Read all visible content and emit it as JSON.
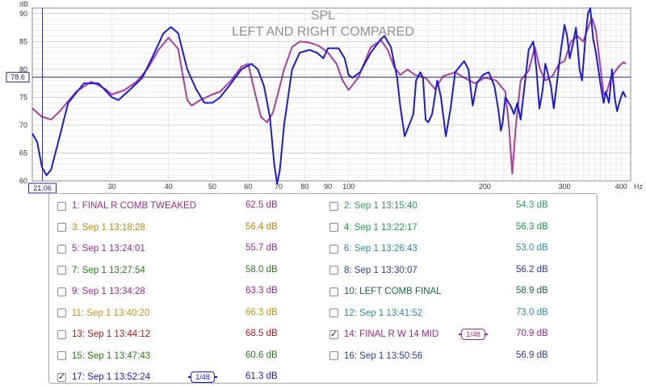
{
  "chart_data": {
    "type": "line",
    "title": "SPL",
    "subtitle": "LEFT AND RIGHT COMPARED",
    "y_unit": "dB",
    "x_unit": "Hz",
    "xscale": "log",
    "xlim": [
      20,
      420
    ],
    "ylim": [
      60,
      91
    ],
    "x_ticks": [
      "30",
      "40",
      "50",
      "60",
      "70",
      "80",
      "90",
      "100",
      "200",
      "300",
      "400"
    ],
    "y_ticks": [
      "60",
      "65",
      "70",
      "75",
      "80",
      "85",
      "90"
    ],
    "cursor": {
      "x_label": "21.06",
      "y_label": "78.6",
      "x": 21.06,
      "y": 78.6
    },
    "grid": true,
    "series": [
      {
        "name": "14: FINAL R W 14 MID",
        "color": "#b03a9e",
        "points": [
          [
            20,
            73
          ],
          [
            21,
            71.5
          ],
          [
            22,
            71
          ],
          [
            23,
            72.5
          ],
          [
            25,
            76
          ],
          [
            27,
            77.8
          ],
          [
            29,
            76.5
          ],
          [
            30,
            75.5
          ],
          [
            32,
            76.3
          ],
          [
            34,
            77.8
          ],
          [
            36,
            80.2
          ],
          [
            38,
            83.5
          ],
          [
            40,
            85.7
          ],
          [
            42,
            83.7
          ],
          [
            43,
            79
          ],
          [
            44,
            74.5
          ],
          [
            45,
            73.5
          ],
          [
            47,
            74.5
          ],
          [
            50,
            75.5
          ],
          [
            52,
            76
          ],
          [
            55,
            78
          ],
          [
            58,
            80.5
          ],
          [
            60,
            81
          ],
          [
            62,
            76
          ],
          [
            64,
            71.5
          ],
          [
            66,
            70.5
          ],
          [
            68,
            72.2
          ],
          [
            70,
            76
          ],
          [
            72,
            80
          ],
          [
            75,
            84
          ],
          [
            78,
            85
          ],
          [
            82,
            84.8
          ],
          [
            86,
            84.2
          ],
          [
            90,
            83
          ],
          [
            94,
            81
          ],
          [
            97,
            78
          ],
          [
            100,
            76.3
          ],
          [
            105,
            78.5
          ],
          [
            112,
            84
          ],
          [
            118,
            85.2
          ],
          [
            122,
            83.5
          ],
          [
            126,
            80.5
          ],
          [
            130,
            79
          ],
          [
            135,
            80
          ],
          [
            140,
            79
          ],
          [
            148,
            78.5
          ],
          [
            155,
            76.5
          ],
          [
            162,
            78.8
          ],
          [
            172,
            79.5
          ],
          [
            180,
            78.5
          ],
          [
            190,
            77.5
          ],
          [
            200,
            78.5
          ],
          [
            212,
            78
          ],
          [
            222,
            76
          ],
          [
            226,
            70
          ],
          [
            230,
            61.3
          ],
          [
            234,
            69.5
          ],
          [
            240,
            78
          ],
          [
            250,
            79.8
          ],
          [
            258,
            84
          ],
          [
            265,
            80
          ],
          [
            272,
            78
          ],
          [
            282,
            78.8
          ],
          [
            292,
            81
          ],
          [
            300,
            81.5
          ],
          [
            310,
            85
          ],
          [
            320,
            86
          ],
          [
            330,
            85
          ],
          [
            340,
            88
          ],
          [
            345,
            89.2
          ],
          [
            352,
            87
          ],
          [
            360,
            80.5
          ],
          [
            366,
            75.5
          ],
          [
            372,
            76
          ],
          [
            380,
            78.5
          ],
          [
            395,
            80.5
          ],
          [
            405,
            81.3
          ],
          [
            410,
            81
          ]
        ]
      },
      {
        "name": "17: Sep 1 13:52:24",
        "color": "#1a1adc",
        "points": [
          [
            20,
            68.5
          ],
          [
            20.5,
            67
          ],
          [
            21,
            62.5
          ],
          [
            21.5,
            61
          ],
          [
            22,
            62
          ],
          [
            23,
            68
          ],
          [
            24,
            74
          ],
          [
            26,
            77.5
          ],
          [
            28,
            77.5
          ],
          [
            30,
            75
          ],
          [
            31,
            74.5
          ],
          [
            33,
            76.5
          ],
          [
            35,
            78.5
          ],
          [
            37,
            82.5
          ],
          [
            39,
            86.5
          ],
          [
            40.5,
            87.6
          ],
          [
            42,
            86.5
          ],
          [
            44,
            80
          ],
          [
            46,
            76.5
          ],
          [
            48,
            74
          ],
          [
            50,
            74
          ],
          [
            52,
            75
          ],
          [
            55,
            77.5
          ],
          [
            58,
            80
          ],
          [
            61,
            81
          ],
          [
            63,
            80
          ],
          [
            65,
            77
          ],
          [
            67,
            71.5
          ],
          [
            68.5,
            63
          ],
          [
            69.5,
            59.5
          ],
          [
            70.5,
            62
          ],
          [
            72,
            70
          ],
          [
            75,
            80
          ],
          [
            78,
            83
          ],
          [
            82,
            83.5
          ],
          [
            85,
            83
          ],
          [
            88,
            82
          ],
          [
            90,
            83.8
          ],
          [
            95,
            83.8
          ],
          [
            98,
            82
          ],
          [
            100,
            79
          ],
          [
            102,
            78.5
          ],
          [
            106,
            79.5
          ],
          [
            112,
            83
          ],
          [
            118,
            85.5
          ],
          [
            120,
            86
          ],
          [
            124,
            84
          ],
          [
            128,
            78.5
          ],
          [
            130,
            73.5
          ],
          [
            133,
            68
          ],
          [
            136,
            70
          ],
          [
            139,
            72
          ],
          [
            141,
            78
          ],
          [
            144,
            79.5
          ],
          [
            146,
            78.5
          ],
          [
            148,
            71
          ],
          [
            150,
            70.5
          ],
          [
            153,
            72
          ],
          [
            157,
            78
          ],
          [
            160,
            75
          ],
          [
            164,
            68
          ],
          [
            168,
            73
          ],
          [
            172,
            79.5
          ],
          [
            180,
            81.5
          ],
          [
            184,
            80
          ],
          [
            188,
            73.5
          ],
          [
            192,
            77.5
          ],
          [
            198,
            79
          ],
          [
            204,
            79.5
          ],
          [
            210,
            77
          ],
          [
            214,
            73
          ],
          [
            217,
            69
          ],
          [
            219,
            70.5
          ],
          [
            222,
            75
          ],
          [
            228,
            73.5
          ],
          [
            232,
            72
          ],
          [
            236,
            74
          ],
          [
            240,
            71
          ],
          [
            244,
            76
          ],
          [
            250,
            83.5
          ],
          [
            256,
            85
          ],
          [
            260,
            80
          ],
          [
            264,
            73
          ],
          [
            268,
            76
          ],
          [
            272,
            81
          ],
          [
            280,
            77
          ],
          [
            284,
            73
          ],
          [
            288,
            77
          ],
          [
            294,
            83
          ],
          [
            300,
            88
          ],
          [
            304,
            86
          ],
          [
            308,
            82
          ],
          [
            314,
            85
          ],
          [
            318,
            87.5
          ],
          [
            324,
            80
          ],
          [
            328,
            78
          ],
          [
            334,
            86
          ],
          [
            338,
            90
          ],
          [
            342,
            91
          ],
          [
            347,
            85.5
          ],
          [
            352,
            83
          ],
          [
            360,
            77.5
          ],
          [
            366,
            74
          ],
          [
            370,
            76
          ],
          [
            376,
            74
          ],
          [
            382,
            80
          ],
          [
            388,
            74.5
          ],
          [
            392,
            72.5
          ],
          [
            398,
            74.5
          ],
          [
            404,
            76
          ],
          [
            410,
            75
          ]
        ]
      }
    ]
  },
  "legend": {
    "smoothing_label": "1/48",
    "items": [
      {
        "label": "1: FINAL R COMB TWEAKED",
        "value": "62.5 dB",
        "color": "#9a2a96",
        "checked": false
      },
      {
        "label": "2: Sep 1 13:15:40",
        "value": "54.3 dB",
        "color": "#2e9a5a",
        "checked": false
      },
      {
        "label": "3: Sep 1 13:18:28",
        "value": "56.4 dB",
        "color": "#b8860b",
        "checked": false
      },
      {
        "label": "4: Sep 1 13:22:17",
        "value": "56.3 dB",
        "color": "#1e9a4a",
        "checked": false
      },
      {
        "label": "5: Sep 1 13:24:01",
        "value": "55.7 dB",
        "color": "#9a2a96",
        "checked": false
      },
      {
        "label": "6: Sep 1 13:26:43",
        "value": "53.0 dB",
        "color": "#2a8aa8",
        "checked": false
      },
      {
        "label": "7: Sep 1 13:27:54",
        "value": "58.0 dB",
        "color": "#2a7a1a",
        "checked": false
      },
      {
        "label": "8: Sep 1 13:30:07",
        "value": "56.2 dB",
        "color": "#2a3aa0",
        "checked": false
      },
      {
        "label": "9: Sep 1 13:34:28",
        "value": "63.3 dB",
        "color": "#9a2a96",
        "checked": false
      },
      {
        "label": "10: LEFT COMB FINAL",
        "value": "58.9 dB",
        "color": "#1a6a3a",
        "checked": false
      },
      {
        "label": "11: Sep 1 13:40:20",
        "value": "66.3 dB",
        "color": "#c8901a",
        "checked": false
      },
      {
        "label": "12: Sep 1 13:41:52",
        "value": "73.0 dB",
        "color": "#2a8aa8",
        "checked": false
      },
      {
        "label": "13: Sep 1 13:44:12",
        "value": "68.5 dB",
        "color": "#a81a1a",
        "checked": false
      },
      {
        "label": "14: FINAL R W 14 MID",
        "value": "70.9 dB",
        "color": "#9a2a86",
        "checked": true
      },
      {
        "label": "15: Sep 1 13:47:43",
        "value": "60.6 dB",
        "color": "#2a7a1a",
        "checked": false
      },
      {
        "label": "16: Sep 1 13:50:56",
        "value": "56.9 dB",
        "color": "#2a3aa0",
        "checked": false
      },
      {
        "label": "17: Sep 1 13:52:24",
        "value": "61.3 dB",
        "color": "#1a1adc",
        "checked": true
      }
    ]
  }
}
